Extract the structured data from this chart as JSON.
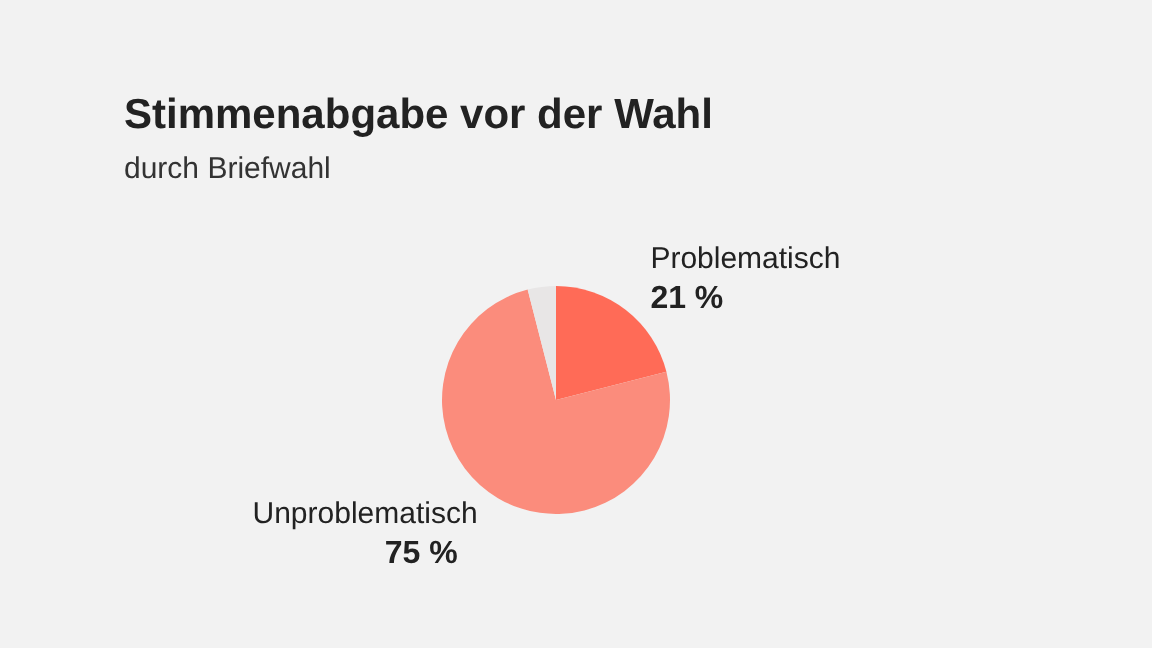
{
  "chart_data": {
    "type": "pie",
    "title": "Stimmenabgabe vor der Wahl",
    "subtitle": "durch Briefwahl",
    "categories": [
      "Problematisch",
      "Unproblematisch",
      null
    ],
    "values": [
      21,
      75,
      4
    ],
    "colors": [
      "#ff6b57",
      "#fb8c7c",
      "#e8e6e6"
    ],
    "value_labels": [
      "21 %",
      "75 %",
      null
    ]
  }
}
